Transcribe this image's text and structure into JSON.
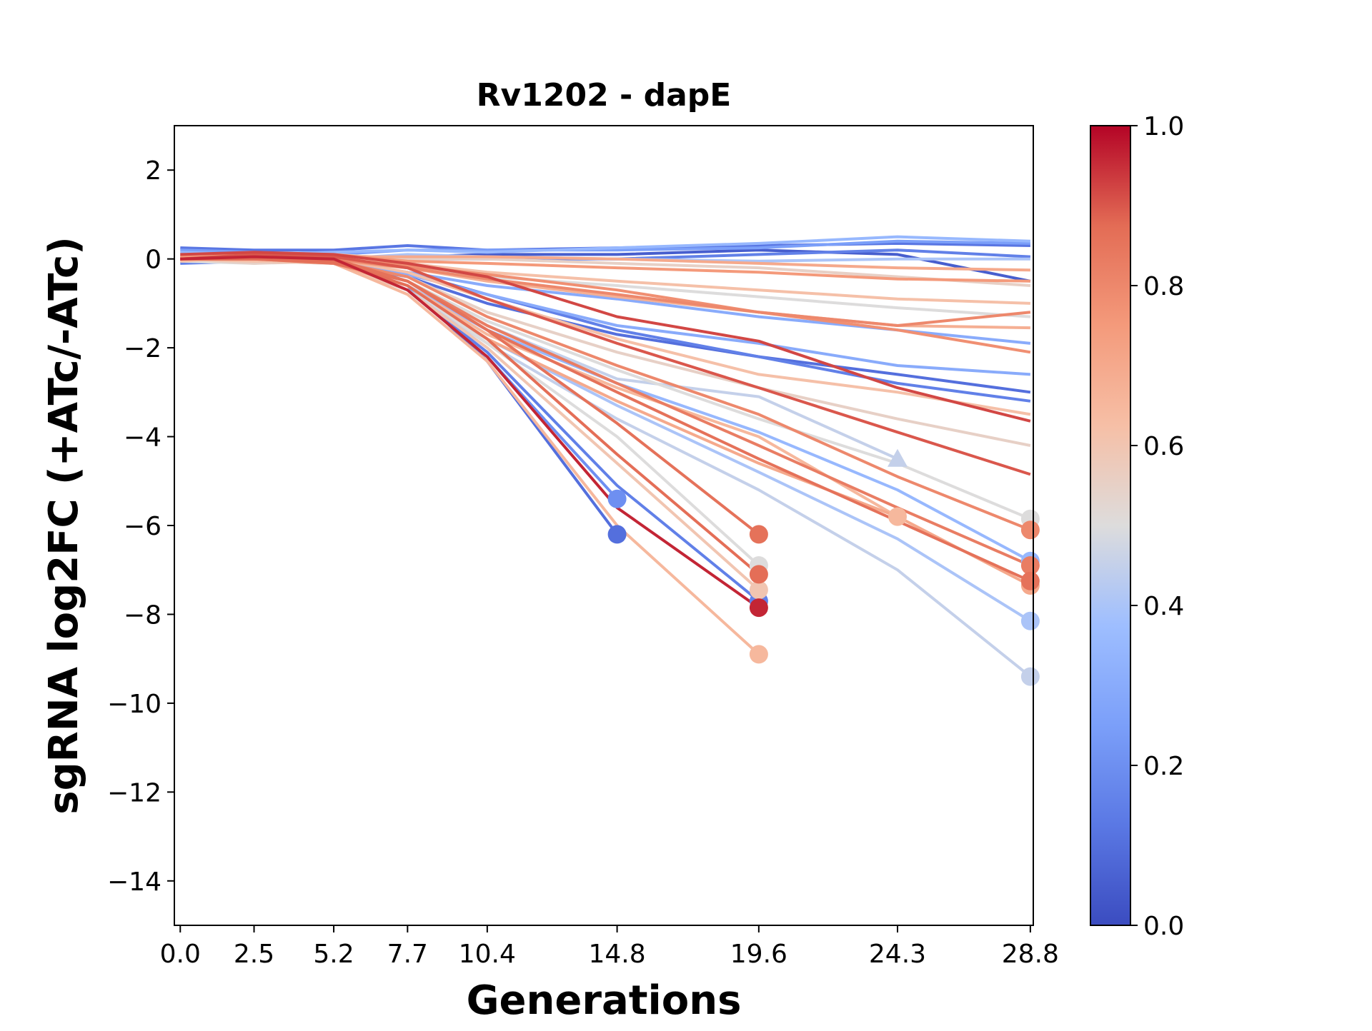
{
  "chart_data": {
    "type": "line",
    "title": "Rv1202 - dapE",
    "xlabel": "Generations",
    "ylabel": "sgRNA log2FC (+ATc/-ATc)",
    "x_ticks": [
      "0.0",
      "2.5",
      "5.2",
      "7.7",
      "10.4",
      "14.8",
      "19.6",
      "24.3",
      "28.8"
    ],
    "x_tick_values": [
      0.0,
      2.5,
      5.2,
      7.7,
      10.4,
      14.8,
      19.6,
      24.3,
      28.8
    ],
    "xlim": [
      -0.2,
      28.9
    ],
    "y_ticks": [
      "2",
      "0",
      "−2",
      "−4",
      "−6",
      "−8",
      "−10",
      "−12",
      "−14"
    ],
    "y_tick_values": [
      2,
      0,
      -2,
      -4,
      -6,
      -8,
      -10,
      -12,
      -14
    ],
    "ylim": [
      -15,
      3
    ],
    "grid": false,
    "colormap": "coolwarm",
    "colorbar": {
      "ticks": [
        "0.0",
        "0.2",
        "0.4",
        "0.6",
        "0.8",
        "1.0"
      ],
      "tick_values": [
        0.0,
        0.2,
        0.4,
        0.6,
        0.8,
        1.0
      ],
      "range": [
        0.0,
        1.0
      ]
    },
    "series": [
      {
        "c": 0.12,
        "y": [
          0.25,
          0.2,
          0.2,
          0.3,
          0.2,
          0.25,
          0.3,
          0.35,
          0.3
        ]
      },
      {
        "c": 0.25,
        "y": [
          0.2,
          0.15,
          0.1,
          0.2,
          0.2,
          0.2,
          0.25,
          0.4,
          0.35
        ]
      },
      {
        "c": 0.35,
        "y": [
          0.15,
          0.1,
          0.15,
          0.2,
          0.15,
          0.25,
          0.35,
          0.5,
          0.4
        ]
      },
      {
        "c": 0.05,
        "y": [
          0.0,
          0.0,
          0.05,
          0.05,
          0.1,
          0.1,
          0.2,
          0.1,
          -0.5
        ]
      },
      {
        "c": 0.15,
        "y": [
          -0.1,
          -0.05,
          0.0,
          0.0,
          0.0,
          0.0,
          0.1,
          0.2,
          0.05
        ]
      },
      {
        "c": 0.4,
        "y": [
          0.1,
          0.05,
          0.0,
          0.1,
          0.05,
          0.0,
          -0.05,
          0.0,
          0.0
        ]
      },
      {
        "c": 0.55,
        "y": [
          0.05,
          0.05,
          0.1,
          0.0,
          0.0,
          -0.1,
          -0.2,
          -0.4,
          -0.6
        ]
      },
      {
        "c": 0.7,
        "y": [
          0.1,
          0.0,
          0.05,
          0.05,
          0.05,
          0.0,
          -0.1,
          -0.2,
          -0.25
        ]
      },
      {
        "c": 0.75,
        "y": [
          0.05,
          0.1,
          0.1,
          -0.05,
          -0.1,
          -0.2,
          -0.3,
          -0.45,
          -0.5
        ]
      },
      {
        "c": 0.62,
        "y": [
          0.0,
          -0.05,
          0.05,
          -0.1,
          -0.3,
          -0.5,
          -0.7,
          -0.9,
          -1.0
        ]
      },
      {
        "c": 0.5,
        "y": [
          -0.05,
          -0.1,
          0.0,
          -0.2,
          -0.4,
          -0.6,
          -0.85,
          -1.1,
          -1.3
        ]
      },
      {
        "c": 0.78,
        "y": [
          0.0,
          0.05,
          0.0,
          -0.15,
          -0.35,
          -0.7,
          -1.2,
          -1.6,
          -2.1
        ]
      },
      {
        "c": 0.3,
        "y": [
          0.0,
          0.0,
          -0.05,
          -0.3,
          -0.6,
          -0.9,
          -1.3,
          -1.6,
          -1.9
        ]
      },
      {
        "c": 0.68,
        "y": [
          0.05,
          0.0,
          -0.05,
          -0.2,
          -0.5,
          -0.85,
          -1.2,
          -1.5,
          -1.55
        ]
      },
      {
        "c": 0.8,
        "y": [
          0.0,
          0.05,
          0.0,
          -0.2,
          -0.45,
          -0.8,
          -1.2,
          -1.5,
          -1.2
        ]
      },
      {
        "c": 0.92,
        "y": [
          0.1,
          0.15,
          0.1,
          -0.1,
          -0.4,
          -1.3,
          -1.85,
          -2.9,
          -3.65
        ]
      },
      {
        "c": 0.15,
        "y": [
          0.0,
          0.05,
          -0.05,
          -0.3,
          -0.8,
          -1.6,
          -2.2,
          -2.8,
          -3.2
        ]
      },
      {
        "c": 0.1,
        "y": [
          0.0,
          0.0,
          -0.1,
          -0.4,
          -1.0,
          -1.7,
          -2.2,
          -2.6,
          -3.0
        ]
      },
      {
        "c": 0.3,
        "y": [
          0.0,
          0.0,
          -0.1,
          -0.35,
          -0.8,
          -1.5,
          -1.9,
          -2.4,
          -2.6
        ]
      },
      {
        "c": 0.62,
        "y": [
          -0.05,
          0.05,
          0.0,
          -0.3,
          -0.9,
          -1.8,
          -2.6,
          -3.0,
          -3.5
        ]
      },
      {
        "c": 0.55,
        "y": [
          0.0,
          -0.1,
          -0.05,
          -0.4,
          -1.2,
          -2.1,
          -2.9,
          -3.6,
          -4.2
        ]
      },
      {
        "c": 0.9,
        "y": [
          0.0,
          0.1,
          0.05,
          -0.2,
          -0.9,
          -1.9,
          -2.9,
          -3.9,
          -4.85
        ]
      },
      {
        "c": 0.8,
        "y": [
          0.0,
          0.0,
          -0.05,
          -0.4,
          -1.3,
          -2.4,
          -3.5,
          -4.9,
          -6.1
        ]
      },
      {
        "c": 0.45,
        "y": [
          0.0,
          -0.05,
          -0.1,
          -0.5,
          -1.5,
          -2.7,
          -3.1,
          -4.5
        ]
      },
      {
        "c": 0.5,
        "y": [
          0.0,
          0.0,
          -0.05,
          -0.5,
          -1.4,
          -2.5,
          -3.6,
          -4.6,
          -5.85
        ]
      },
      {
        "c": 0.35,
        "y": [
          0.0,
          0.0,
          -0.1,
          -0.6,
          -1.6,
          -2.8,
          -3.9,
          -5.2,
          -6.8
        ]
      },
      {
        "c": 0.65,
        "y": [
          0.0,
          0.0,
          -0.1,
          -0.6,
          -1.7,
          -2.9,
          -4.0,
          -5.8
        ]
      },
      {
        "c": 0.83,
        "y": [
          0.0,
          0.05,
          -0.05,
          -0.5,
          -1.5,
          -2.8,
          -4.2,
          -5.6,
          -6.9
        ]
      },
      {
        "c": 0.86,
        "y": [
          0.0,
          0.0,
          -0.1,
          -0.5,
          -1.6,
          -3.0,
          -4.5,
          -5.9,
          -7.25
        ]
      },
      {
        "c": 0.7,
        "y": [
          0.0,
          0.0,
          -0.1,
          -0.6,
          -1.8,
          -3.2,
          -4.6,
          -5.8,
          -7.35
        ]
      },
      {
        "c": 0.4,
        "y": [
          0.0,
          0.0,
          -0.1,
          -0.7,
          -1.8,
          -3.3,
          -4.8,
          -6.3,
          -8.15
        ]
      },
      {
        "c": 0.45,
        "y": [
          0.0,
          0.0,
          -0.1,
          -0.7,
          -1.9,
          -3.6,
          -5.2,
          -7.0,
          -9.4
        ]
      },
      {
        "c": 0.86,
        "y": [
          0.0,
          0.05,
          0.0,
          -0.5,
          -1.6,
          -3.7,
          -6.2
        ]
      },
      {
        "c": 0.5,
        "y": [
          0.0,
          0.0,
          -0.1,
          -0.6,
          -1.9,
          -4.0,
          -6.9
        ]
      },
      {
        "c": 0.87,
        "y": [
          0.0,
          0.0,
          -0.05,
          -0.6,
          -1.8,
          -4.4,
          -7.1
        ]
      },
      {
        "c": 0.6,
        "y": [
          0.0,
          -0.05,
          -0.1,
          -0.7,
          -2.0,
          -4.6,
          -7.45
        ]
      },
      {
        "c": 0.15,
        "y": [
          0.0,
          0.0,
          -0.1,
          -0.7,
          -2.1,
          -5.1,
          -7.7
        ]
      },
      {
        "c": 0.96,
        "y": [
          0.0,
          0.05,
          0.0,
          -0.7,
          -2.2,
          -5.6,
          -7.85
        ]
      },
      {
        "c": 0.65,
        "y": [
          0.0,
          0.0,
          -0.1,
          -0.8,
          -2.3,
          -6.0,
          -8.9
        ]
      },
      {
        "c": 0.2,
        "y": [
          0.0,
          0.0,
          -0.1,
          -0.7,
          -2.2,
          -5.4
        ]
      },
      {
        "c": 0.1,
        "y": [
          0.0,
          0.0,
          -0.1,
          -0.6,
          -2.3,
          -6.2
        ]
      }
    ],
    "annotations": [
      {
        "x": 24.3,
        "y": -4.5,
        "marker": "triangle",
        "c": 0.45
      }
    ]
  }
}
